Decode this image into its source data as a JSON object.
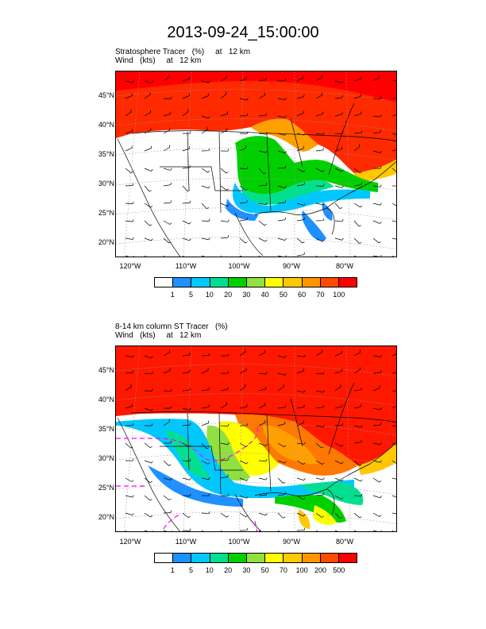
{
  "title": "2013-09-24_15:00:00",
  "panels": [
    {
      "label_line1": "Stratosphere Tracer   (%)     at   12 km",
      "label_line2": "Wind   (kts)     at   12 km",
      "lat_labels": [
        "45°N",
        "40°N",
        "35°N",
        "30°N",
        "25°N",
        "20°N"
      ],
      "lon_labels": [
        "120°W",
        "110°W",
        "100°W",
        "90°W",
        "80°W"
      ],
      "colorbar": {
        "colors": [
          "#ffffff",
          "#1e90ff",
          "#00c8ff",
          "#00e090",
          "#00d000",
          "#90e040",
          "#ffff00",
          "#ffc800",
          "#ff9600",
          "#ff4b00",
          "#ff0000"
        ],
        "ticks": [
          "1",
          "5",
          "10",
          "20",
          "30",
          "40",
          "50",
          "60",
          "70",
          "100"
        ]
      }
    },
    {
      "label_line1": "8-14 km column ST Tracer   (%)",
      "label_line2": "Wind   (kts)     at   12 km",
      "lat_labels": [
        "45°N",
        "40°N",
        "35°N",
        "30°N",
        "25°N",
        "20°N"
      ],
      "lon_labels": [
        "120°W",
        "110°W",
        "100°W",
        "90°W",
        "80°W"
      ],
      "colorbar": {
        "colors": [
          "#ffffff",
          "#1e90ff",
          "#00c8ff",
          "#00e090",
          "#00d000",
          "#90e040",
          "#ffff00",
          "#ffc800",
          "#ff9600",
          "#ff4b00",
          "#ff0000"
        ],
        "ticks": [
          "1",
          "5",
          "10",
          "20",
          "30",
          "50",
          "70",
          "100",
          "200",
          "500"
        ]
      }
    }
  ]
}
